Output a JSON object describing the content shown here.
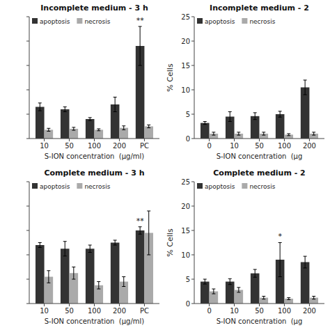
{
  "chart_data": [
    {
      "type": "bar",
      "title": "Incomplete medium - 3 h",
      "categories": [
        "10",
        "50",
        "100",
        "200",
        "PC"
      ],
      "series": [
        {
          "name": "apoptosis",
          "color": "#333333",
          "values": [
            6.5,
            6.0,
            4.0,
            7.0,
            19.0
          ],
          "errors": [
            0.8,
            0.5,
            0.3,
            1.5,
            4.0
          ]
        },
        {
          "name": "necrosis",
          "color": "#aaaaaa",
          "values": [
            1.8,
            2.0,
            1.8,
            2.2,
            2.5
          ],
          "errors": [
            0.3,
            0.3,
            0.2,
            0.4,
            0.3
          ]
        }
      ],
      "xlabel": "S-ION concentration  (μg/ml)",
      "ylim": [
        0,
        25
      ],
      "yticks": [
        0,
        5,
        10,
        15,
        20,
        25
      ],
      "tick_labels": "x",
      "grid": false,
      "legend": "upper left",
      "annotations": [
        {
          "text": "**",
          "series": 0,
          "index": 4
        }
      ]
    },
    {
      "type": "bar",
      "title": "Incomplete medium - 2",
      "categories": [
        "0",
        "10",
        "50",
        "100",
        "200"
      ],
      "series": [
        {
          "name": "apoptosis",
          "color": "#333333",
          "values": [
            3.2,
            4.5,
            4.6,
            5.0,
            10.5
          ],
          "errors": [
            0.3,
            1.0,
            0.7,
            0.6,
            1.5
          ]
        },
        {
          "name": "necrosis",
          "color": "#aaaaaa",
          "values": [
            1.0,
            1.0,
            1.0,
            0.8,
            1.0
          ],
          "errors": [
            0.3,
            0.3,
            0.3,
            0.2,
            0.3
          ]
        }
      ],
      "xlabel": "S-ION concentration  (μg",
      "ylabel": "% Cells",
      "ylim": [
        0,
        25
      ],
      "yticks": [
        0,
        5,
        10,
        15,
        20,
        25
      ],
      "grid": false,
      "legend": "upper left"
    },
    {
      "type": "bar",
      "title": "Complete medium - 3 h",
      "categories": [
        "10",
        "50",
        "100",
        "200",
        "PC"
      ],
      "series": [
        {
          "name": "apoptosis",
          "color": "#333333",
          "values": [
            4.8,
            4.5,
            4.5,
            5.0,
            6.0
          ],
          "errors": [
            0.2,
            0.6,
            0.3,
            0.2,
            0.3
          ]
        },
        {
          "name": "necrosis",
          "color": "#aaaaaa",
          "values": [
            2.2,
            2.5,
            1.5,
            1.8,
            5.8
          ],
          "errors": [
            0.5,
            0.5,
            0.3,
            0.4,
            1.8
          ]
        }
      ],
      "xlabel": "S-ION concentration  (μg/ml)",
      "ylim": [
        0,
        10
      ],
      "yticks": [
        0,
        2,
        4,
        6,
        8,
        10
      ],
      "tick_labels": "x",
      "grid": false,
      "legend": "upper left",
      "annotations": [
        {
          "text": "**",
          "series": 0,
          "index": 4
        }
      ]
    },
    {
      "type": "bar",
      "title": "Complete medium - 2",
      "categories": [
        "0",
        "10",
        "50",
        "100",
        "200"
      ],
      "series": [
        {
          "name": "apoptosis",
          "color": "#333333",
          "values": [
            4.5,
            4.5,
            6.2,
            9.0,
            8.5
          ],
          "errors": [
            0.5,
            0.6,
            0.8,
            3.5,
            1.2
          ]
        },
        {
          "name": "necrosis",
          "color": "#aaaaaa",
          "values": [
            2.5,
            2.8,
            1.2,
            1.0,
            1.2
          ],
          "errors": [
            0.5,
            0.5,
            0.3,
            0.2,
            0.3
          ]
        }
      ],
      "xlabel": "S-ION concentration  (μg",
      "ylabel": "% Cells",
      "ylim": [
        0,
        25
      ],
      "yticks": [
        0,
        5,
        10,
        15,
        20,
        25
      ],
      "grid": false,
      "legend": "upper left",
      "annotations": [
        {
          "text": "*",
          "series": 0,
          "index": 3
        }
      ]
    }
  ]
}
